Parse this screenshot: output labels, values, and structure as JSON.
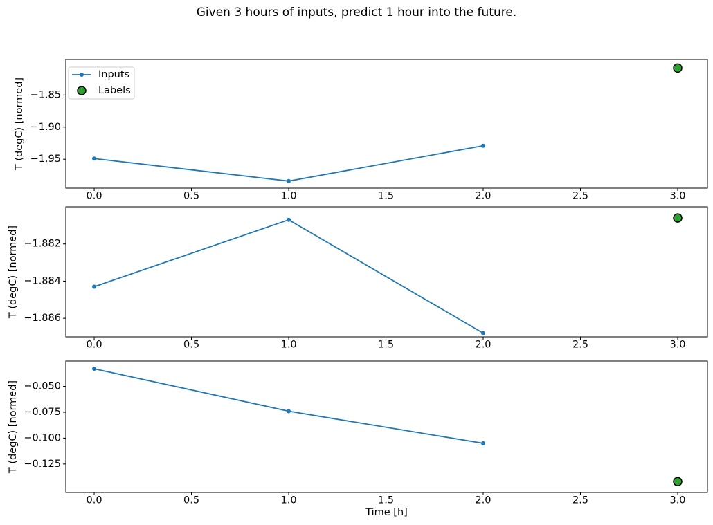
{
  "figure": {
    "title": "Given 3 hours of inputs, predict 1 hour into the future.",
    "background": "#ffffff"
  },
  "colors": {
    "inputs_line": "#1f77b4",
    "labels_fill": "#2ca02c",
    "labels_edge": "#000000",
    "axis": "#000000",
    "legend_border": "#cccccc",
    "legend_bg": "#ffffff"
  },
  "chart_data": [
    {
      "type": "line",
      "ylabel": "T (degC) [normed]",
      "x": [
        0,
        1,
        2
      ],
      "series": [
        {
          "name": "Inputs",
          "values": [
            -1.949,
            -1.984,
            -1.929
          ]
        }
      ],
      "label_point": {
        "name": "Labels",
        "x": 3,
        "y": -1.808
      },
      "xlim": [
        -0.146,
        3.153
      ],
      "ylim": [
        -1.995,
        -1.7947
      ],
      "xticks": {
        "values": [
          0,
          0.5,
          1,
          1.5,
          2,
          2.5,
          3
        ],
        "labels": [
          "0.0",
          "0.5",
          "1.0",
          "1.5",
          "2.0",
          "2.5",
          "3.0"
        ]
      },
      "yticks": {
        "values": [
          -1.85,
          -1.9,
          -1.95
        ],
        "labels": [
          "−1.85",
          "−1.90",
          "−1.95"
        ]
      },
      "legend": {
        "position": "upper left",
        "entries": [
          {
            "label": "Inputs",
            "marker": "line-dot"
          },
          {
            "label": "Labels",
            "marker": "circle"
          }
        ]
      },
      "grid": false
    },
    {
      "type": "line",
      "ylabel": "T (degC) [normed]",
      "x": [
        0,
        1,
        2
      ],
      "series": [
        {
          "name": "Inputs",
          "values": [
            -1.8843,
            -1.8807,
            -1.8868
          ]
        }
      ],
      "label_point": {
        "name": "Labels",
        "x": 3,
        "y": -1.8806
      },
      "xlim": [
        -0.146,
        3.153
      ],
      "ylim": [
        -1.887,
        -1.88
      ],
      "xticks": {
        "values": [
          0,
          0.5,
          1,
          1.5,
          2,
          2.5,
          3
        ],
        "labels": [
          "0.0",
          "0.5",
          "1.0",
          "1.5",
          "2.0",
          "2.5",
          "3.0"
        ]
      },
      "yticks": {
        "values": [
          -1.882,
          -1.884,
          -1.886
        ],
        "labels": [
          "−1.882",
          "−1.884",
          "−1.886"
        ]
      },
      "grid": false
    },
    {
      "type": "line",
      "xlabel": "Time [h]",
      "ylabel": "T (degC) [normed]",
      "x": [
        0,
        1,
        2
      ],
      "series": [
        {
          "name": "Inputs",
          "values": [
            -0.033,
            -0.074,
            -0.105
          ]
        }
      ],
      "label_point": {
        "name": "Labels",
        "x": 3,
        "y": -0.142
      },
      "xlim": [
        -0.146,
        3.153
      ],
      "ylim": [
        -0.1525,
        -0.0256
      ],
      "xticks": {
        "values": [
          0,
          0.5,
          1,
          1.5,
          2,
          2.5,
          3
        ],
        "labels": [
          "0.0",
          "0.5",
          "1.0",
          "1.5",
          "2.0",
          "2.5",
          "3.0"
        ]
      },
      "yticks": {
        "values": [
          -0.05,
          -0.075,
          -0.1,
          -0.125
        ],
        "labels": [
          "−0.050",
          "−0.075",
          "−0.100",
          "−0.125"
        ]
      },
      "grid": false
    }
  ]
}
